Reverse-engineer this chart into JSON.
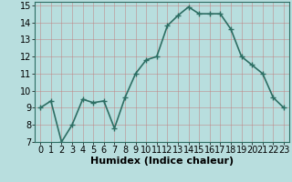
{
  "x": [
    0,
    1,
    2,
    3,
    4,
    5,
    6,
    7,
    8,
    9,
    10,
    11,
    12,
    13,
    14,
    15,
    16,
    17,
    18,
    19,
    20,
    21,
    22,
    23
  ],
  "y": [
    9.0,
    9.4,
    7.0,
    8.0,
    9.5,
    9.3,
    9.4,
    7.8,
    9.6,
    11.0,
    11.8,
    12.0,
    13.8,
    14.4,
    14.9,
    14.5,
    14.5,
    14.5,
    13.6,
    12.0,
    11.5,
    11.0,
    9.6,
    9.0
  ],
  "line_color": "#2d6e63",
  "marker": "+",
  "marker_size": 4,
  "background_color": "#b8dede",
  "grid_color": "#c08080",
  "xlabel": "Humidex (Indice chaleur)",
  "xlim": [
    -0.5,
    23.5
  ],
  "ylim": [
    7,
    15.2
  ],
  "yticks": [
    7,
    8,
    9,
    10,
    11,
    12,
    13,
    14,
    15
  ],
  "xticks": [
    0,
    1,
    2,
    3,
    4,
    5,
    6,
    7,
    8,
    9,
    10,
    11,
    12,
    13,
    14,
    15,
    16,
    17,
    18,
    19,
    20,
    21,
    22,
    23
  ],
  "xlabel_fontsize": 8,
  "tick_fontsize": 7,
  "line_width": 1.2
}
